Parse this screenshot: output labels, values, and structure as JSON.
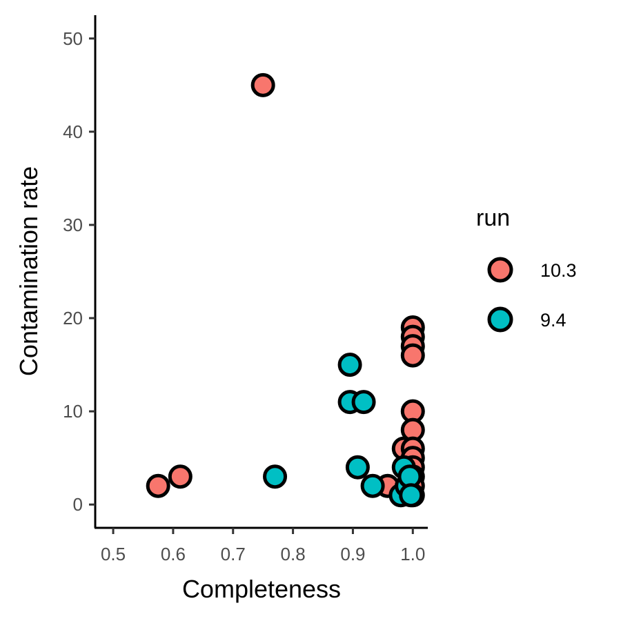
{
  "chart_data": {
    "type": "scatter",
    "title": "",
    "xlabel": "Completeness",
    "ylabel": "Contamination rate",
    "xlim": [
      0.47,
      1.025
    ],
    "ylim": [
      -2.5,
      52.5
    ],
    "xticks": [
      "0.5",
      "0.6",
      "0.7",
      "0.8",
      "0.9",
      "1.0"
    ],
    "yticks": [
      "0",
      "10",
      "20",
      "30",
      "40",
      "50"
    ],
    "grid": false,
    "legend": {
      "title": "run",
      "position": "right"
    },
    "series": [
      {
        "name": "10.3",
        "color": "#F8766D",
        "points": [
          {
            "x": 0.575,
            "y": 2
          },
          {
            "x": 0.612,
            "y": 3
          },
          {
            "x": 0.75,
            "y": 45
          },
          {
            "x": 0.958,
            "y": 2
          },
          {
            "x": 0.985,
            "y": 6
          },
          {
            "x": 1.0,
            "y": 19
          },
          {
            "x": 1.0,
            "y": 18
          },
          {
            "x": 1.0,
            "y": 17
          },
          {
            "x": 1.0,
            "y": 16
          },
          {
            "x": 1.0,
            "y": 10
          },
          {
            "x": 1.0,
            "y": 8
          },
          {
            "x": 1.0,
            "y": 6
          },
          {
            "x": 1.0,
            "y": 5
          },
          {
            "x": 1.0,
            "y": 4
          },
          {
            "x": 1.0,
            "y": 3
          },
          {
            "x": 1.0,
            "y": 2
          },
          {
            "x": 1.0,
            "y": 1
          }
        ]
      },
      {
        "name": "9.4",
        "color": "#00BFC4",
        "points": [
          {
            "x": 0.77,
            "y": 3
          },
          {
            "x": 0.895,
            "y": 15
          },
          {
            "x": 0.895,
            "y": 11
          },
          {
            "x": 0.918,
            "y": 11
          },
          {
            "x": 0.908,
            "y": 4
          },
          {
            "x": 0.933,
            "y": 2
          },
          {
            "x": 0.98,
            "y": 1
          },
          {
            "x": 0.985,
            "y": 4
          },
          {
            "x": 0.99,
            "y": 2
          },
          {
            "x": 0.995,
            "y": 3
          },
          {
            "x": 0.997,
            "y": 1
          }
        ]
      }
    ]
  }
}
